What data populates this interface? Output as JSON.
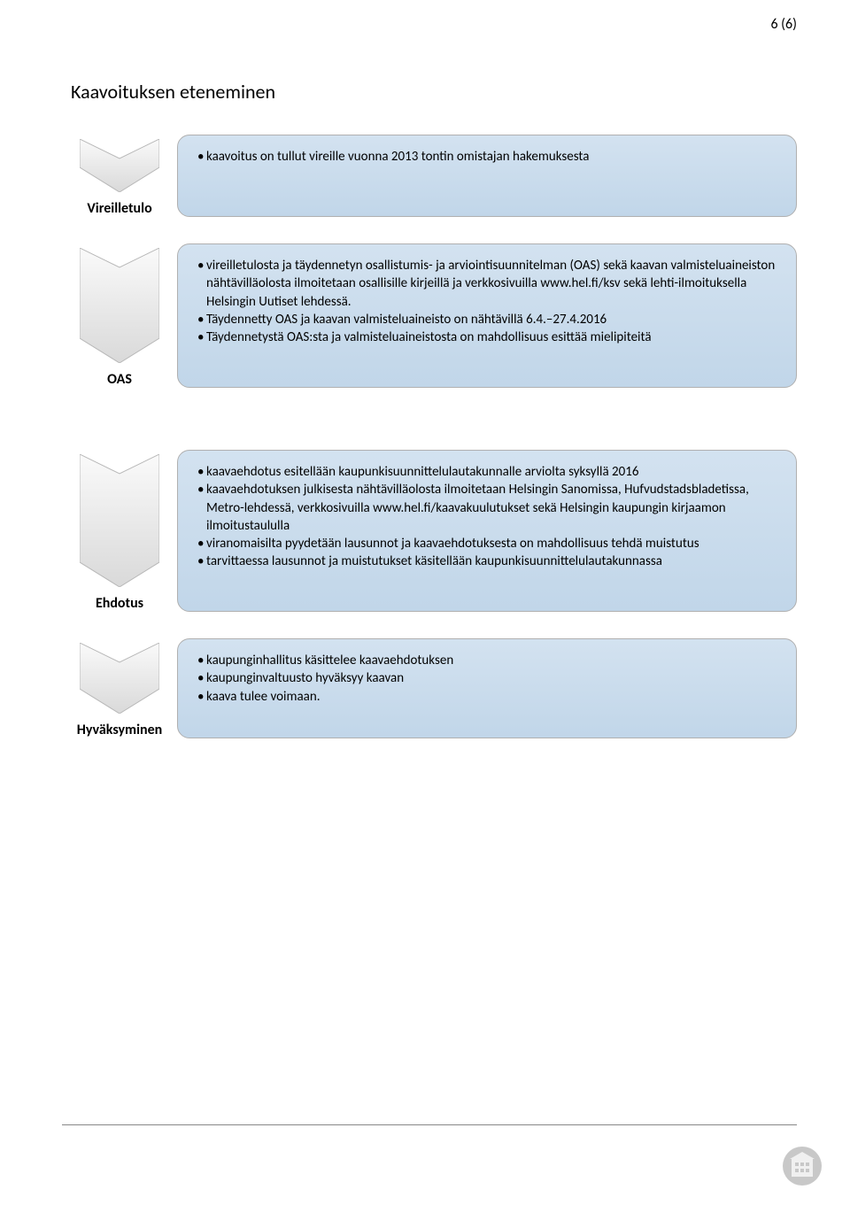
{
  "page_number": "6 (6)",
  "title": "Kaavoituksen eteneminen",
  "colors": {
    "box_gradient_top": "#d3e2f0",
    "box_gradient_bottom": "#c1d6e9",
    "box_border": "#b0b0b0",
    "chevron_gradient_top": "#fafafa",
    "chevron_gradient_bottom": "#d9d9d9",
    "chevron_stroke": "#b8b8b8",
    "footer_line": "#888888",
    "text": "#000000",
    "footer_icon": "#b8b8b8"
  },
  "typography": {
    "title_fontsize": 22,
    "label_fontsize": 16,
    "body_fontsize": 15,
    "page_number_fontsize": 16
  },
  "stages": [
    {
      "label": "Vireilletulo",
      "items": [
        "kaavoitus on tullut vireille vuonna 2013 tontin omistajan hakemuksesta"
      ]
    },
    {
      "label": "OAS",
      "items": [
        "vireilletulosta ja täydennetyn osallistumis- ja arviointisuunnitelman (OAS) sekä kaavan valmisteluaineiston nähtävilläolosta ilmoitetaan osallisille kirjeillä ja verkkosivuilla www.hel.fi/ksv sekä lehti-ilmoituksella Helsingin Uutiset lehdessä.",
        "Täydennetty OAS ja kaavan valmisteluaineisto on nähtävillä 6.4.–27.4.2016",
        "Täydennetystä OAS:sta ja valmisteluaineistosta on  mahdollisuus esittää mielipiteitä"
      ]
    },
    {
      "label": "Ehdotus",
      "items": [
        "kaavaehdotus esitellään kaupunkisuunnittelulautakunnalle arviolta syksyllä 2016",
        "kaavaehdotuksen julkisesta nähtävilläolosta ilmoitetaan Helsingin Sanomissa, Hufvudstadsbladetissa, Metro-lehdessä, verkkosivuilla www.hel.fi/kaavakuulutukset sekä Helsingin kaupungin kirjaamon ilmoitustaululla",
        "viranomaisilta pyydetään lausunnot ja kaavaehdotuksesta on mahdollisuus tehdä muistutus",
        "tarvittaessa lausunnot ja muistutukset käsitellään kaupunkisuunnittelulautakunnassa"
      ]
    },
    {
      "label": "Hyväksyminen",
      "items": [
        "kaupunginhallitus käsittelee kaavaehdotuksen",
        "kaupunginvaltuusto hyväksyy kaavan",
        "kaava tulee voimaan."
      ]
    }
  ]
}
